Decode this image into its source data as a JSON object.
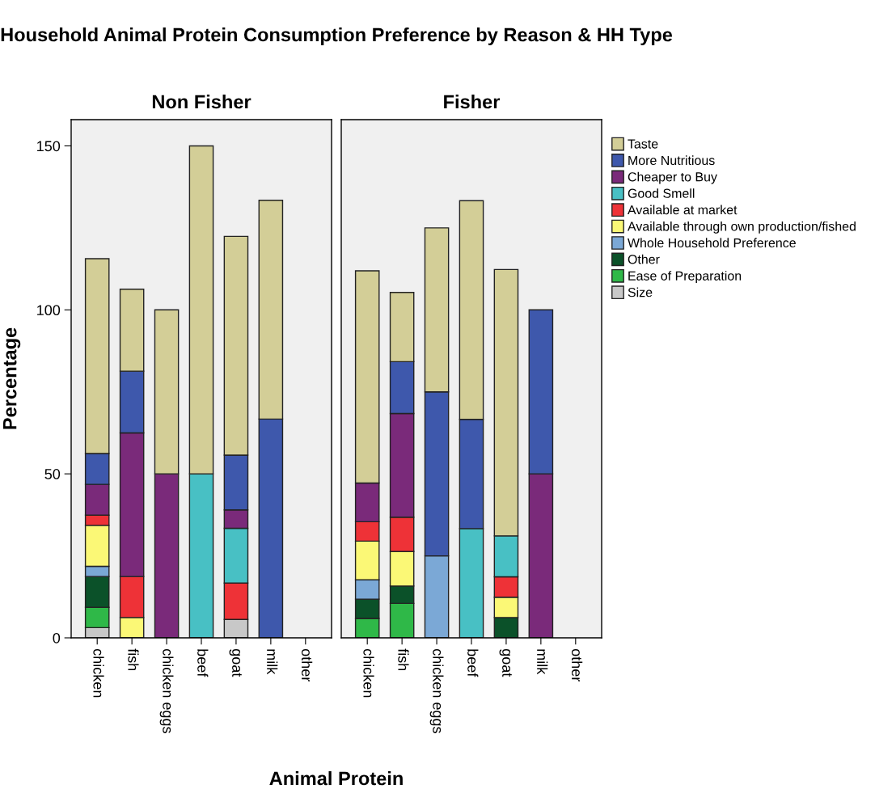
{
  "chart_data": [
    {
      "type": "bar",
      "stacked": true,
      "title": "Household Animal Protein Consumption Preference by Reason & HH Type",
      "subtitle": "Non Fisher",
      "xlabel": "Animal Protein",
      "ylabel": "Percentage",
      "categories": [
        "chicken",
        "fish",
        "chicken eggs",
        "beef",
        "goat",
        "milk",
        "other"
      ],
      "ylim": [
        0,
        158
      ],
      "yticks": [
        0,
        50,
        100,
        150
      ],
      "grid": false,
      "legend": false,
      "series": [
        {
          "color": "#c8c8c8",
          "values": [
            3.1,
            null,
            null,
            null,
            5.6,
            null,
            null
          ]
        },
        {
          "color": "#2fb848",
          "values": [
            6.2,
            null,
            null,
            null,
            null,
            null,
            null
          ]
        },
        {
          "color": "#0b5129",
          "values": [
            9.4,
            null,
            null,
            null,
            null,
            null,
            null
          ]
        },
        {
          "color": "#7ba8d6",
          "values": [
            3.1,
            null,
            null,
            null,
            null,
            null,
            null
          ]
        },
        {
          "color": "#fbf876",
          "values": [
            12.5,
            6.2,
            null,
            null,
            null,
            null,
            null
          ]
        },
        {
          "color": "#ee3237",
          "values": [
            3.1,
            12.5,
            null,
            null,
            11.1,
            null,
            null
          ]
        },
        {
          "color": "#48c0c4",
          "values": [
            null,
            null,
            null,
            50,
            16.7,
            null,
            null
          ]
        },
        {
          "color": "#7a2a7a",
          "values": [
            9.4,
            43.8,
            50,
            null,
            5.6,
            null,
            null
          ]
        },
        {
          "color": "#3e58ac",
          "values": [
            9.4,
            18.8,
            null,
            null,
            16.7,
            66.7,
            null
          ]
        },
        {
          "color": "#d3ce97",
          "values": [
            59.4,
            25,
            50,
            100,
            66.7,
            66.7,
            null
          ]
        }
      ]
    },
    {
      "type": "bar",
      "stacked": true,
      "title": "Fisher",
      "categories": [
        "chicken",
        "fish",
        "chicken eggs",
        "beef",
        "goat",
        "milk",
        "other"
      ],
      "ylim": [
        0,
        158
      ],
      "yticks": [
        0,
        50,
        100,
        150
      ],
      "tick_labels": "x",
      "grid": false,
      "legend": "right",
      "series": [
        {
          "name": "Size",
          "color": "#c8c8c8",
          "values": [
            null,
            null,
            null,
            null,
            null,
            null,
            null
          ]
        },
        {
          "name": "Ease of Preparation",
          "color": "#2fb848",
          "values": [
            5.9,
            10.5,
            null,
            null,
            null,
            null,
            null
          ]
        },
        {
          "name": "Other",
          "color": "#0b5129",
          "values": [
            5.9,
            5.3,
            null,
            null,
            6.2,
            null,
            null
          ]
        },
        {
          "name": "Whole Household Preference",
          "color": "#7ba8d6",
          "values": [
            5.9,
            null,
            25,
            null,
            null,
            null,
            null
          ]
        },
        {
          "name": "Available through own production/fished",
          "color": "#fbf876",
          "values": [
            11.8,
            10.5,
            null,
            null,
            6.2,
            null,
            null
          ]
        },
        {
          "name": "Available at market",
          "color": "#ee3237",
          "values": [
            5.9,
            10.5,
            null,
            null,
            6.2,
            null,
            null
          ]
        },
        {
          "name": "Good Smell",
          "color": "#48c0c4",
          "values": [
            null,
            null,
            null,
            33.3,
            12.5,
            null,
            null
          ]
        },
        {
          "name": "Cheaper to Buy",
          "color": "#7a2a7a",
          "values": [
            11.8,
            31.6,
            null,
            null,
            null,
            50,
            null
          ]
        },
        {
          "name": "More Nutritious",
          "color": "#3e58ac",
          "values": [
            null,
            15.8,
            50,
            33.3,
            null,
            50,
            null
          ]
        },
        {
          "name": "Taste",
          "color": "#d3ce97",
          "values": [
            64.7,
            21.1,
            50,
            66.7,
            81.2,
            null,
            null
          ]
        }
      ]
    }
  ]
}
